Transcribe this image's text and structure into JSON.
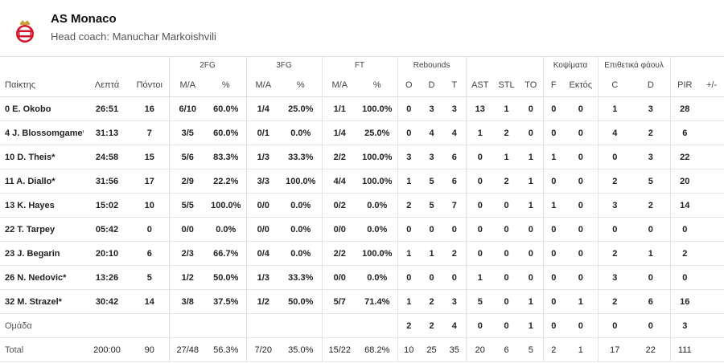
{
  "team": {
    "name": "AS Monaco",
    "coach": "Head coach: Manuchar Markoishvili",
    "logo_icon": "monaco-crest-icon"
  },
  "groups": {
    "fg2": "2FG",
    "fg3": "3FG",
    "ft": "FT",
    "rebounds": "Rebounds",
    "blocks": "Κοψίματα",
    "fouls": "Επιθετικά φάουλ"
  },
  "columns": {
    "player": "Παίκτης",
    "min": "Λεπτά",
    "pts": "Πόντοι",
    "ma": "M/A",
    "pct": "%",
    "o": "O",
    "d": "D",
    "t": "T",
    "ast": "AST",
    "stl": "STL",
    "to": "TO",
    "f": "F",
    "ag": "Εκτός",
    "c": "C",
    "fd": "D",
    "pir": "PIR",
    "pm": "+/-"
  },
  "players": [
    [
      "0 E. Okobo",
      "26:51",
      "16",
      "6/10",
      "60.0%",
      "1/4",
      "25.0%",
      "1/1",
      "100.0%",
      "0",
      "3",
      "3",
      "13",
      "1",
      "0",
      "0",
      "0",
      "1",
      "3",
      "28"
    ],
    [
      "4 J. Blossomgame*",
      "31:13",
      "7",
      "3/5",
      "60.0%",
      "0/1",
      "0.0%",
      "1/4",
      "25.0%",
      "0",
      "4",
      "4",
      "1",
      "2",
      "0",
      "0",
      "0",
      "4",
      "2",
      "6"
    ],
    [
      "10 D. Theis*",
      "24:58",
      "15",
      "5/6",
      "83.3%",
      "1/3",
      "33.3%",
      "2/2",
      "100.0%",
      "3",
      "3",
      "6",
      "0",
      "1",
      "1",
      "1",
      "0",
      "0",
      "3",
      "22"
    ],
    [
      "11 A. Diallo*",
      "31:56",
      "17",
      "2/9",
      "22.2%",
      "3/3",
      "100.0%",
      "4/4",
      "100.0%",
      "1",
      "5",
      "6",
      "0",
      "2",
      "1",
      "0",
      "0",
      "2",
      "5",
      "20"
    ],
    [
      "13 K. Hayes",
      "15:02",
      "10",
      "5/5",
      "100.0%",
      "0/0",
      "0.0%",
      "0/2",
      "0.0%",
      "2",
      "5",
      "7",
      "0",
      "0",
      "1",
      "1",
      "0",
      "3",
      "2",
      "14"
    ],
    [
      "22 T. Tarpey",
      "05:42",
      "0",
      "0/0",
      "0.0%",
      "0/0",
      "0.0%",
      "0/0",
      "0.0%",
      "0",
      "0",
      "0",
      "0",
      "0",
      "0",
      "0",
      "0",
      "0",
      "0",
      "0"
    ],
    [
      "23 J. Begarin",
      "20:10",
      "6",
      "2/3",
      "66.7%",
      "0/4",
      "0.0%",
      "2/2",
      "100.0%",
      "1",
      "1",
      "2",
      "0",
      "0",
      "0",
      "0",
      "0",
      "2",
      "1",
      "2"
    ],
    [
      "26 N. Nedovic*",
      "13:26",
      "5",
      "1/2",
      "50.0%",
      "1/3",
      "33.3%",
      "0/0",
      "0.0%",
      "0",
      "0",
      "0",
      "1",
      "0",
      "0",
      "0",
      "0",
      "3",
      "0",
      "0"
    ],
    [
      "32 M. Strazel*",
      "30:42",
      "14",
      "3/8",
      "37.5%",
      "1/2",
      "50.0%",
      "5/7",
      "71.4%",
      "1",
      "2",
      "3",
      "5",
      "0",
      "1",
      "0",
      "1",
      "2",
      "6",
      "16"
    ]
  ],
  "team_row": [
    "Ομάδα",
    "",
    "",
    "",
    "",
    "",
    "",
    "",
    "",
    "2",
    "2",
    "4",
    "0",
    "0",
    "1",
    "0",
    "0",
    "0",
    "0",
    "3"
  ],
  "total_row": [
    "Total",
    "200:00",
    "90",
    "27/48",
    "56.3%",
    "7/20",
    "35.0%",
    "15/22",
    "68.2%",
    "10",
    "25",
    "35",
    "20",
    "6",
    "5",
    "2",
    "1",
    "17",
    "22",
    "111"
  ]
}
